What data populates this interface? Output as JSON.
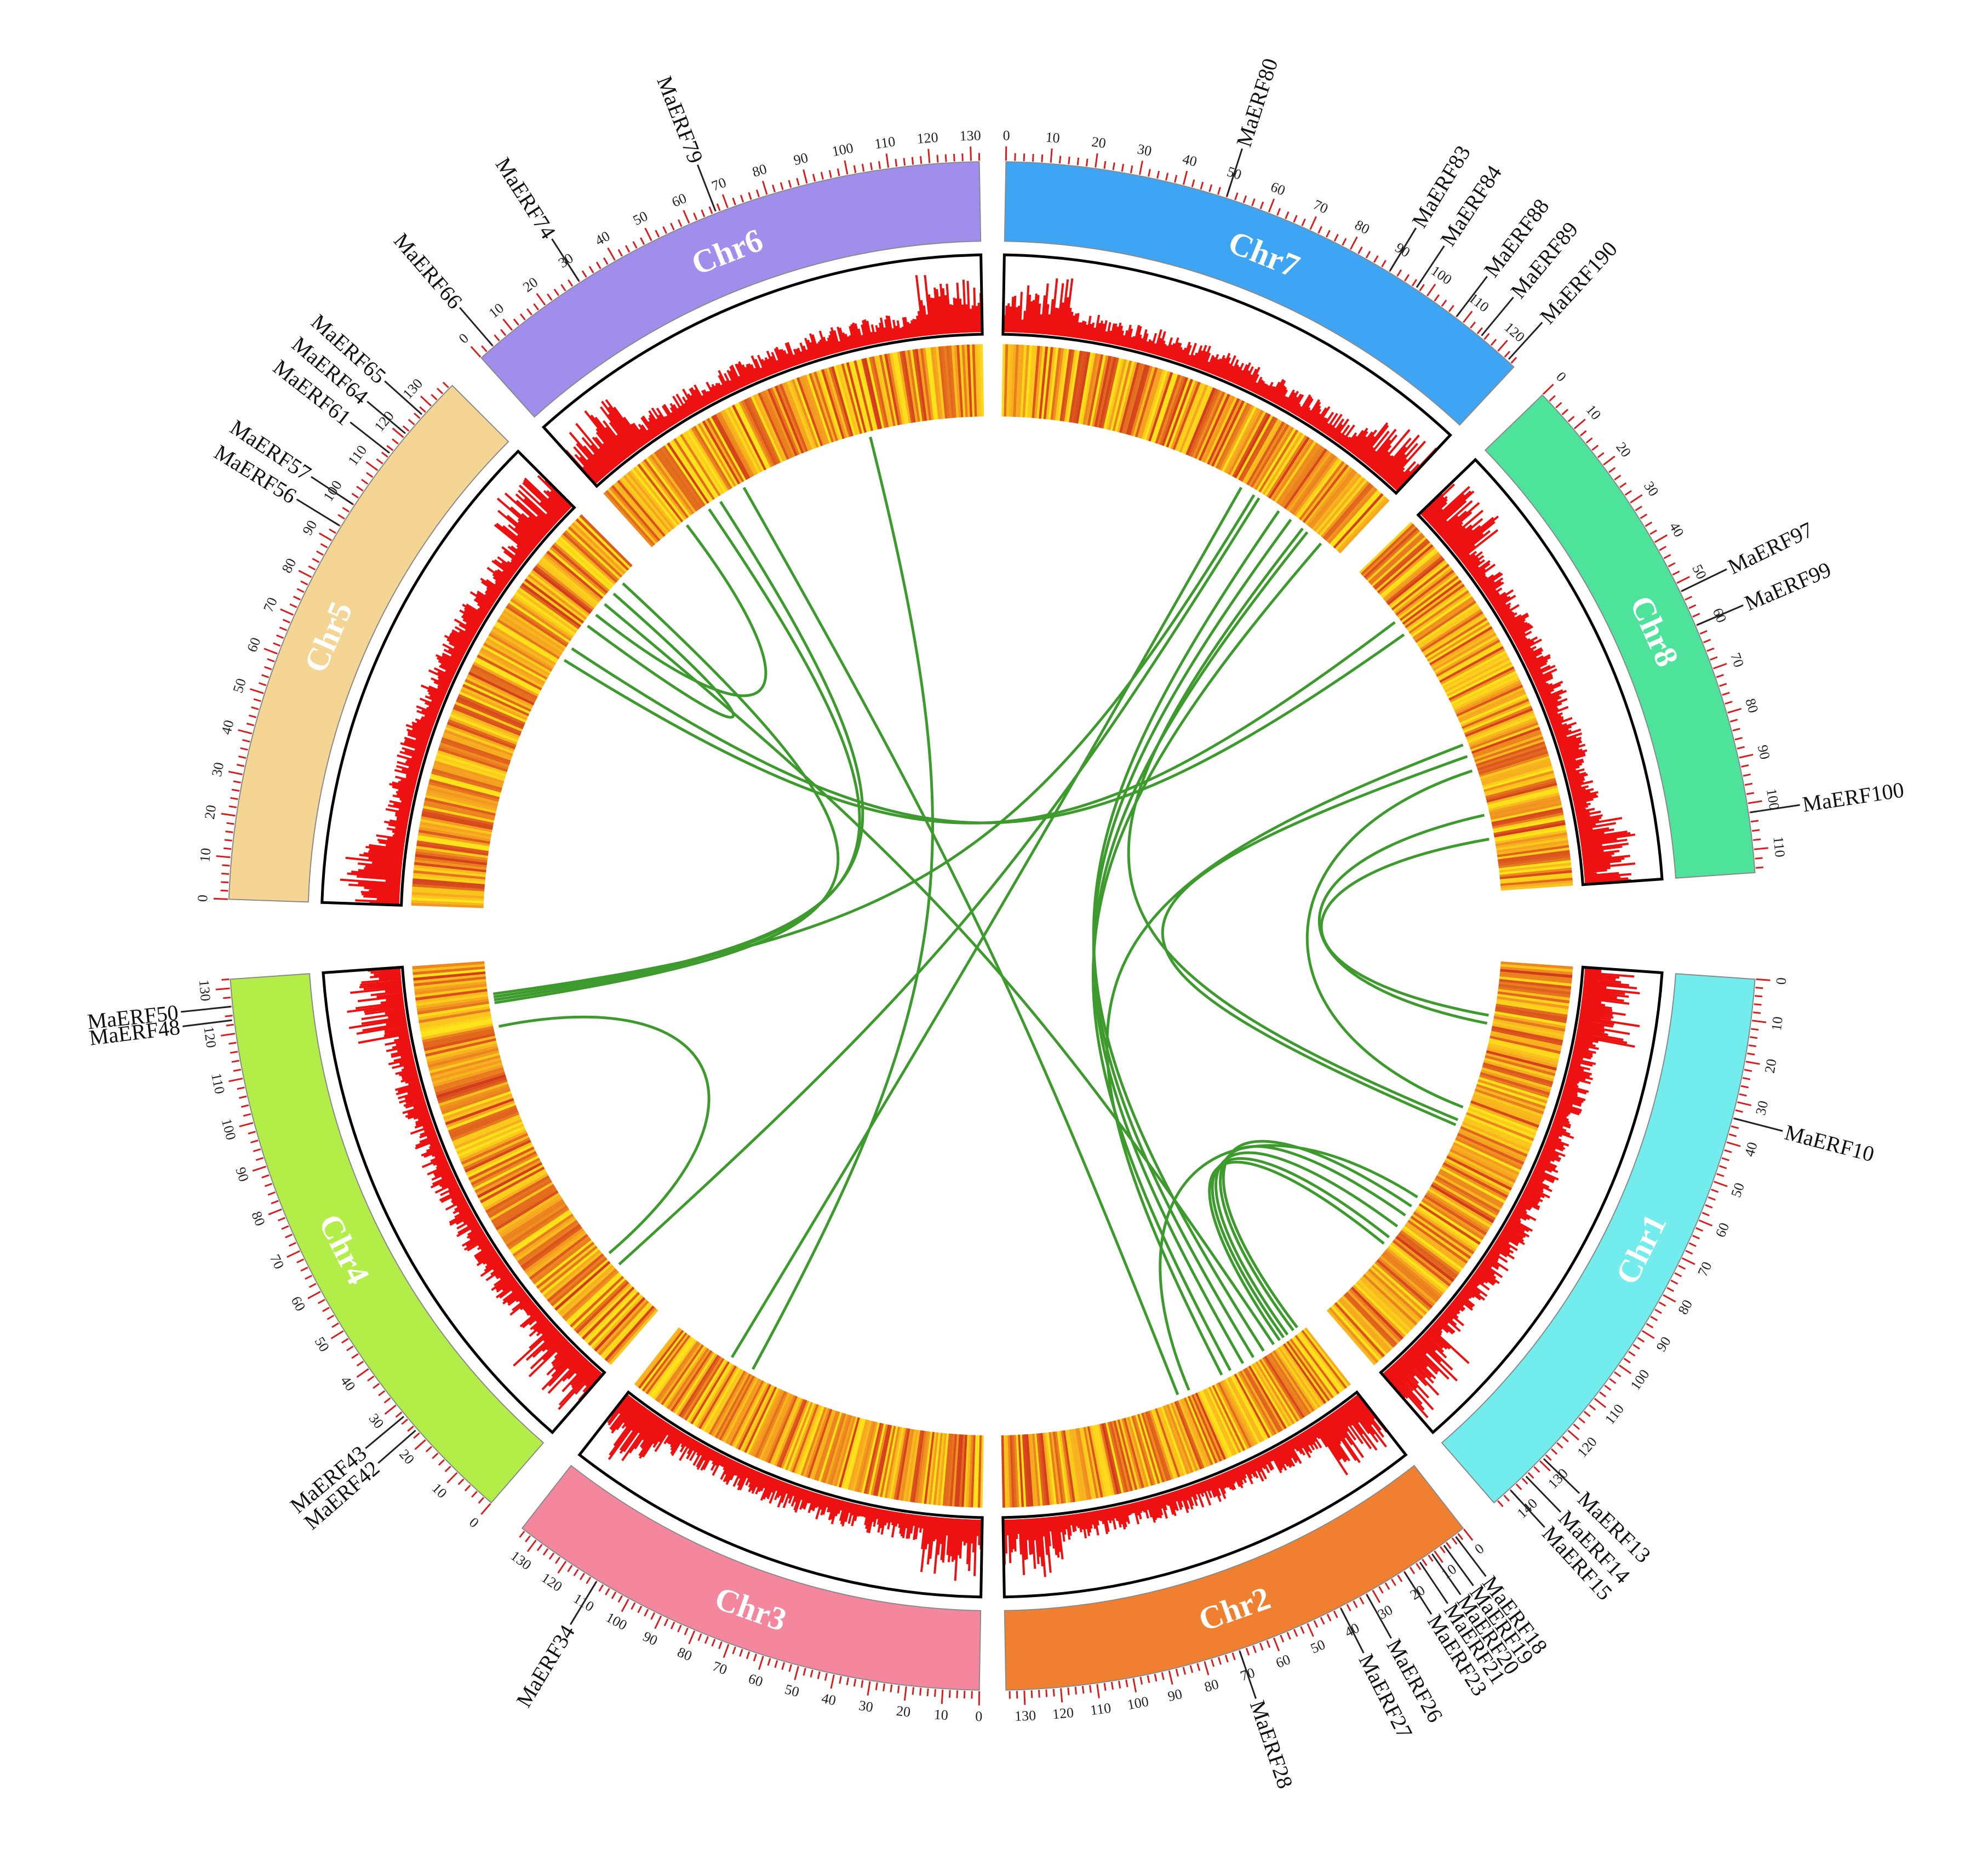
{
  "colors": {
    "tick": "#d42020",
    "density_bar": "#ee1111",
    "link": "#3d9a2c",
    "heat_low": "#ffe31a",
    "heat_mid": "#f5a020",
    "heat_high": "#d23a1c"
  },
  "chromosomes": [
    {
      "name": "Chr1",
      "label": "Chr1",
      "length": 145,
      "color": "#72ecec"
    },
    {
      "name": "Chr2",
      "label": "Chr2",
      "length": 135,
      "color": "#f08030"
    },
    {
      "name": "Chr3",
      "label": "Chr3",
      "length": 135,
      "color": "#f4879e"
    },
    {
      "name": "Chr4",
      "label": "Chr4",
      "length": 132,
      "color": "#b3ed48"
    },
    {
      "name": "Chr5",
      "label": "Chr5",
      "length": 137,
      "color": "#f4d593"
    },
    {
      "name": "Chr6",
      "label": "Chr6",
      "length": 132,
      "color": "#a08dec"
    },
    {
      "name": "Chr7",
      "label": "Chr7",
      "length": 125,
      "color": "#3ea5f5"
    },
    {
      "name": "Chr8",
      "label": "Chr8",
      "length": 115,
      "color": "#4ee39a"
    }
  ],
  "genes": [
    {
      "name": "MaERF10",
      "chr": "Chr1",
      "pos": 34
    },
    {
      "name": "MaERF13",
      "chr": "Chr1",
      "pos": 129
    },
    {
      "name": "MaERF14",
      "chr": "Chr1",
      "pos": 135
    },
    {
      "name": "MaERF15",
      "chr": "Chr1",
      "pos": 140
    },
    {
      "name": "MaERF18",
      "chr": "Chr2",
      "pos": 3
    },
    {
      "name": "MaERF19",
      "chr": "Chr2",
      "pos": 7
    },
    {
      "name": "MaERF20",
      "chr": "Chr2",
      "pos": 11
    },
    {
      "name": "MaERF21",
      "chr": "Chr2",
      "pos": 15
    },
    {
      "name": "MaERF23",
      "chr": "Chr2",
      "pos": 20
    },
    {
      "name": "MaERF26",
      "chr": "Chr2",
      "pos": 32
    },
    {
      "name": "MaERF27",
      "chr": "Chr2",
      "pos": 40
    },
    {
      "name": "MaERF28",
      "chr": "Chr2",
      "pos": 70
    },
    {
      "name": "MaERF34",
      "chr": "Chr3",
      "pos": 110
    },
    {
      "name": "MaERF42",
      "chr": "Chr4",
      "pos": 23
    },
    {
      "name": "MaERF43",
      "chr": "Chr4",
      "pos": 27
    },
    {
      "name": "MaERF48",
      "chr": "Chr4",
      "pos": 123
    },
    {
      "name": "MaERF50",
      "chr": "Chr4",
      "pos": 126
    },
    {
      "name": "MaERF56",
      "chr": "Chr5",
      "pos": 94
    },
    {
      "name": "MaERF57",
      "chr": "Chr5",
      "pos": 100
    },
    {
      "name": "MaERF61",
      "chr": "Chr5",
      "pos": 115
    },
    {
      "name": "MaERF64",
      "chr": "Chr5",
      "pos": 121
    },
    {
      "name": "MaERF65",
      "chr": "Chr5",
      "pos": 127
    },
    {
      "name": "MaERF66",
      "chr": "Chr6",
      "pos": 4
    },
    {
      "name": "MaERF74",
      "chr": "Chr6",
      "pos": 30
    },
    {
      "name": "MaERF79",
      "chr": "Chr6",
      "pos": 67
    },
    {
      "name": "MaERF80",
      "chr": "Chr7",
      "pos": 50
    },
    {
      "name": "MaERF83",
      "chr": "Chr7",
      "pos": 90
    },
    {
      "name": "MaERF84",
      "chr": "Chr7",
      "pos": 97
    },
    {
      "name": "MaERF88",
      "chr": "Chr7",
      "pos": 108
    },
    {
      "name": "MaERF89",
      "chr": "Chr7",
      "pos": 115
    },
    {
      "name": "MaERF190",
      "chr": "Chr7",
      "pos": 123
    },
    {
      "name": "MaERF97",
      "chr": "Chr8",
      "pos": 52
    },
    {
      "name": "MaERF99",
      "chr": "Chr8",
      "pos": 60
    },
    {
      "name": "MaERF100",
      "chr": "Chr8",
      "pos": 102
    }
  ],
  "links": [
    {
      "a": [
        "Chr1",
        20
      ],
      "b": [
        "Chr8",
        98
      ]
    },
    {
      "a": [
        "Chr1",
        23
      ],
      "b": [
        "Chr8",
        90
      ]
    },
    {
      "a": [
        "Chr1",
        60
      ],
      "b": [
        "Chr7",
        110
      ]
    },
    {
      "a": [
        "Chr1",
        62
      ],
      "b": [
        "Chr8",
        70
      ]
    },
    {
      "a": [
        "Chr1",
        92
      ],
      "b": [
        "Chr2",
        55
      ]
    },
    {
      "a": [
        "Chr1",
        96
      ],
      "b": [
        "Chr2",
        3
      ]
    },
    {
      "a": [
        "Chr1",
        100
      ],
      "b": [
        "Chr2",
        5
      ]
    },
    {
      "a": [
        "Chr1",
        105
      ],
      "b": [
        "Chr2",
        8
      ]
    },
    {
      "a": [
        "Chr1",
        110
      ],
      "b": [
        "Chr2",
        10
      ]
    },
    {
      "a": [
        "Chr1",
        113
      ],
      "b": [
        "Chr2",
        12
      ]
    },
    {
      "a": [
        "Chr1",
        55
      ],
      "b": [
        "Chr8",
        75
      ]
    },
    {
      "a": [
        "Chr2",
        20
      ],
      "b": [
        "Chr7",
        100
      ]
    },
    {
      "a": [
        "Chr2",
        25
      ],
      "b": [
        "Chr7",
        105
      ]
    },
    {
      "a": [
        "Chr2",
        30
      ],
      "b": [
        "Chr7",
        112
      ]
    },
    {
      "a": [
        "Chr2",
        36
      ],
      "b": [
        "Chr7",
        118
      ]
    },
    {
      "a": [
        "Chr2",
        40
      ],
      "b": [
        "Chr8",
        66
      ]
    },
    {
      "a": [
        "Chr2",
        15
      ],
      "b": [
        "Chr5",
        120
      ]
    },
    {
      "a": [
        "Chr3",
        110
      ],
      "b": [
        "Chr7",
        85
      ]
    },
    {
      "a": [
        "Chr4",
        20
      ],
      "b": [
        "Chr7",
        92
      ]
    },
    {
      "a": [
        "Chr4",
        25
      ],
      "b": [
        "Chr4",
        110
      ]
    },
    {
      "a": [
        "Chr4",
        118
      ],
      "b": [
        "Chr5",
        130
      ]
    },
    {
      "a": [
        "Chr4",
        119
      ],
      "b": [
        "Chr6",
        25
      ]
    },
    {
      "a": [
        "Chr4",
        120
      ],
      "b": [
        "Chr6",
        30
      ]
    },
    {
      "a": [
        "Chr4",
        121
      ],
      "b": [
        "Chr7",
        90
      ]
    },
    {
      "a": [
        "Chr5",
        95
      ],
      "b": [
        "Chr8",
        20
      ]
    },
    {
      "a": [
        "Chr5",
        100
      ],
      "b": [
        "Chr8",
        25
      ]
    },
    {
      "a": [
        "Chr5",
        110
      ],
      "b": [
        "Chr5",
        125
      ]
    },
    {
      "a": [
        "Chr5",
        115
      ],
      "b": [
        "Chr6",
        15
      ]
    },
    {
      "a": [
        "Chr3",
        100
      ],
      "b": [
        "Chr6",
        90
      ]
    },
    {
      "a": [
        "Chr2",
        60
      ],
      "b": [
        "Chr6",
        40
      ]
    }
  ]
}
